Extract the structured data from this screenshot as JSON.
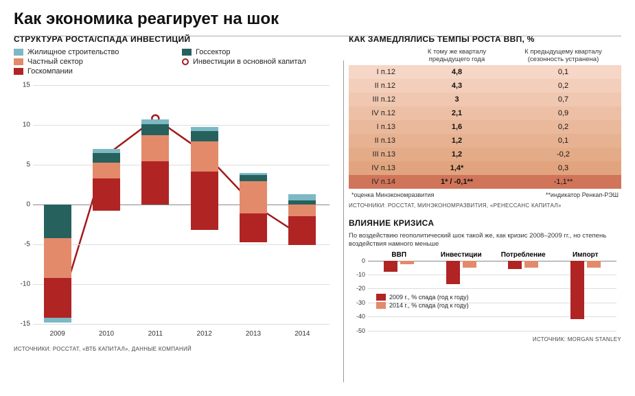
{
  "title": "Как экономика реагирует на шок",
  "left": {
    "title": "СТРУКТУРА РОСТА/СПАДА ИНВЕСТИЦИЙ",
    "legend": [
      {
        "label": "Жилищное строительство",
        "color": "#7db9c4"
      },
      {
        "label": "Госсектор",
        "color": "#26615e"
      },
      {
        "label": "Частный сектор",
        "color": "#e38a6b"
      },
      {
        "label": "Инвестиции в основной капитал",
        "color": "#a01a1a",
        "type": "line"
      },
      {
        "label": "Госкомпании",
        "color": "#b02424"
      }
    ],
    "chart": {
      "type": "stacked-bar+line",
      "ylim": [
        -15,
        15
      ],
      "ytick_step": 5,
      "years": [
        "2009",
        "2010",
        "2011",
        "2012",
        "2013",
        "2014"
      ],
      "colors": {
        "housing": "#7db9c4",
        "gov": "#26615e",
        "private": "#e38a6b",
        "statecomp": "#b02424",
        "line": "#a01a1a",
        "grid": "#dddddd",
        "axis": "#888888",
        "bg": "#ffffff"
      },
      "bars": [
        {
          "housing_pos": 0.0,
          "gov_pos": 0.0,
          "private_pos": 0.0,
          "statecomp_pos": 0.0,
          "housing_neg": -0.6,
          "gov_neg": -4.2,
          "private_neg": -5.0,
          "statecomp_neg": -5.0
        },
        {
          "housing_pos": 0.5,
          "gov_pos": 1.2,
          "private_pos": 2.0,
          "statecomp_pos": 3.3,
          "housing_neg": 0,
          "gov_neg": 0,
          "private_neg": 0,
          "statecomp_neg": -0.8
        },
        {
          "housing_pos": 0.6,
          "gov_pos": 1.4,
          "private_pos": 3.3,
          "statecomp_pos": 5.4,
          "housing_neg": 0,
          "gov_neg": 0,
          "private_neg": 0,
          "statecomp_neg": 0
        },
        {
          "housing_pos": 0.5,
          "gov_pos": 1.3,
          "private_pos": 3.8,
          "statecomp_pos": 4.1,
          "housing_neg": 0,
          "gov_neg": 0,
          "private_neg": 0,
          "statecomp_neg": -3.2
        },
        {
          "housing_pos": 0.3,
          "gov_pos": 0.8,
          "private_pos": 2.9,
          "statecomp_pos": 0.0,
          "housing_neg": 0,
          "gov_neg": 0,
          "private_neg": -1.1,
          "statecomp_neg": -3.6
        },
        {
          "housing_pos": 0.8,
          "gov_pos": 0.5,
          "private_pos": 0.0,
          "statecomp_pos": 0.0,
          "housing_neg": 0,
          "gov_neg": 0,
          "private_neg": -1.5,
          "statecomp_neg": -3.6
        }
      ],
      "line_values": [
        -14.0,
        6.2,
        10.8,
        6.5,
        0.0,
        -4.0
      ]
    },
    "sources": "ИСТОЧНИКИ: РОССТАТ, «ВТБ КАПИТАЛ», ДАННЫЕ КОМПАНИЙ"
  },
  "gdp": {
    "title": "КАК ЗАМЕДЛЯЛИСЬ ТЕМПЫ РОСТА ВВП, %",
    "col_a": "К тому же кварталу предыдущего года",
    "col_b": "К предыдущему кварталу (сезонность устранена)",
    "row_colors": [
      "#f6d6c6",
      "#f3cfbb",
      "#f0c7b0",
      "#edc0a6",
      "#eab99c",
      "#e7b292",
      "#e4ab88",
      "#e1a47e",
      "#d0745a"
    ],
    "rows": [
      {
        "label": "I п.12",
        "a": "4,8",
        "b": "0,1"
      },
      {
        "label": "II п.12",
        "a": "4,3",
        "b": "0,2"
      },
      {
        "label": "III п.12",
        "a": "3",
        "b": "0,7"
      },
      {
        "label": "IV п.12",
        "a": "2,1",
        "b": "0,9"
      },
      {
        "label": "I п.13",
        "a": "1,6",
        "b": "0,2"
      },
      {
        "label": "II п.13",
        "a": "1,2",
        "b": "0,1"
      },
      {
        "label": "III п.13",
        "a": "1,2",
        "b": "-0,2"
      },
      {
        "label": "IV п.13",
        "a": "1,4*",
        "b": "0,3"
      },
      {
        "label": "IV п.14",
        "a": "1* / -0,1**",
        "b": "-1,1**"
      }
    ],
    "footnote_a": "*оценка Минэкономразвития",
    "footnote_b": "**индикатор Ренкап-РЭШ",
    "sources": "ИСТОЧНИКИ: РОССТАТ, МИНЭКОНОМРАЗВИТИЯ, «РЕНЕССАНС КАПИТАЛ»"
  },
  "crisis": {
    "title": "ВЛИЯНИЕ КРИЗИСА",
    "subtitle": "По воздействию геополитический шок такой же, как кризис 2008–2009 гг., но степень воздействия намного меньше",
    "ylim": [
      -50,
      0
    ],
    "ytick_step": 10,
    "categories": [
      "ВВП",
      "Инвестиции",
      "Потребление",
      "Импорт"
    ],
    "colors": {
      "y2009": "#b02424",
      "y2014": "#e38a6b",
      "grid": "#dddddd"
    },
    "legend": [
      {
        "swatch": "#b02424",
        "label": "2009 г., %    спада (год к году)"
      },
      {
        "swatch": "#e38a6b",
        "label": "2014 г., %    спада (год к году)"
      }
    ],
    "series": [
      {
        "y2009": -8,
        "y2014": -2.5
      },
      {
        "y2009": -17,
        "y2014": -5
      },
      {
        "y2009": -6,
        "y2014": -5
      },
      {
        "y2009": -42,
        "y2014": -5
      }
    ],
    "sources": "ИСТОЧНИК: MORGAN STANLEY"
  }
}
